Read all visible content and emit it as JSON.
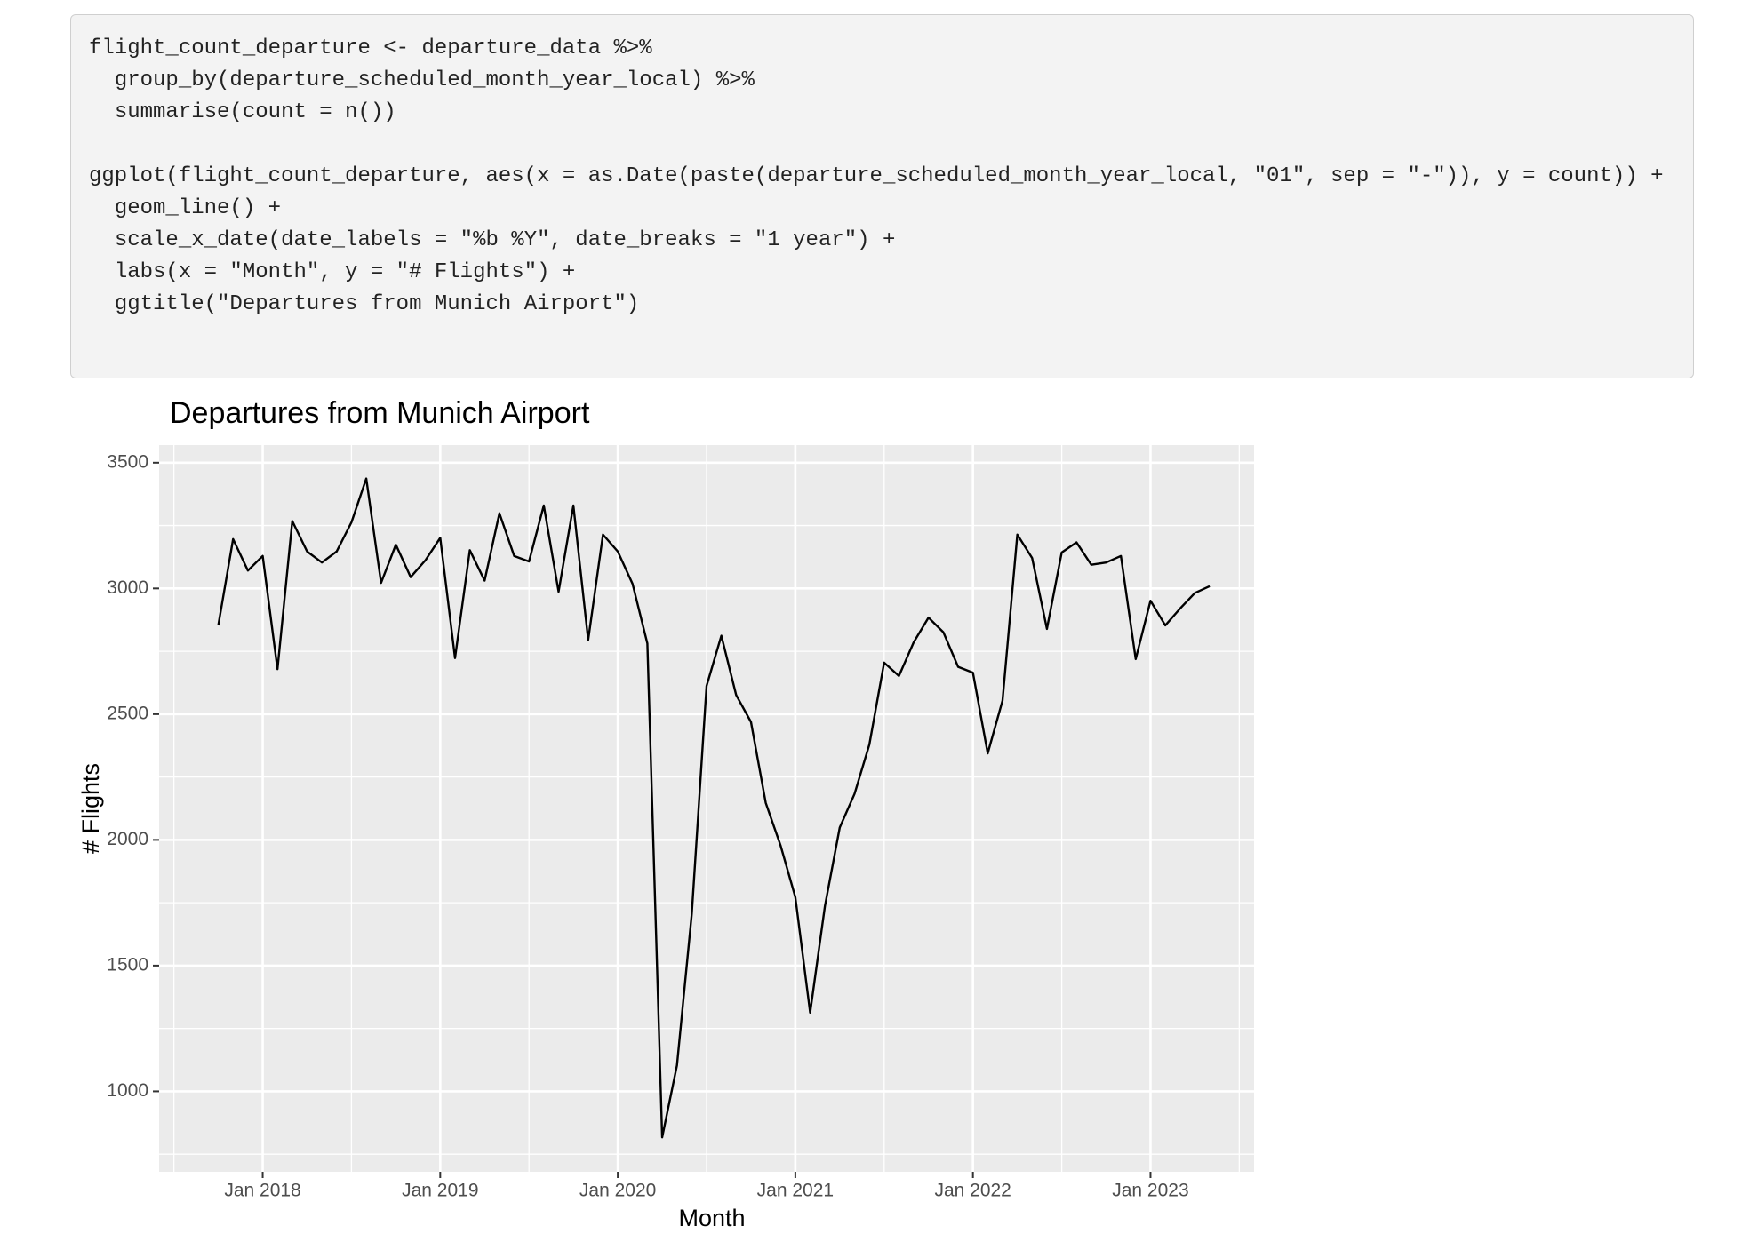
{
  "code": "flight_count_departure <- departure_data %>%\n  group_by(departure_scheduled_month_year_local) %>%\n  summarise(count = n())\n\nggplot(flight_count_departure, aes(x = as.Date(paste(departure_scheduled_month_year_local, \"01\", sep = \"-\")), y = count)) +\n  geom_line() +\n  scale_x_date(date_labels = \"%b %Y\", date_breaks = \"1 year\") +\n  labs(x = \"Month\", y = \"# Flights\") +\n  ggtitle(\"Departures from Munich Airport\")",
  "chart_data": {
    "type": "line",
    "title": "Departures from Munich Airport",
    "x_label": "Month",
    "y_label": "# Flights",
    "color": "#000000",
    "grid": true,
    "x": [
      "2017-10",
      "2017-11",
      "2017-12",
      "2018-01",
      "2018-02",
      "2018-03",
      "2018-04",
      "2018-05",
      "2018-06",
      "2018-07",
      "2018-08",
      "2018-09",
      "2018-10",
      "2018-11",
      "2018-12",
      "2019-01",
      "2019-02",
      "2019-03",
      "2019-04",
      "2019-05",
      "2019-06",
      "2019-07",
      "2019-08",
      "2019-09",
      "2019-10",
      "2019-11",
      "2019-12",
      "2020-01",
      "2020-02",
      "2020-03",
      "2020-04",
      "2020-05",
      "2020-06",
      "2020-07",
      "2020-08",
      "2020-09",
      "2020-10",
      "2020-11",
      "2020-12",
      "2021-01",
      "2021-02",
      "2021-03",
      "2021-04",
      "2021-05",
      "2021-06",
      "2021-07",
      "2021-08",
      "2021-09",
      "2021-10",
      "2021-11",
      "2021-12",
      "2022-01",
      "2022-02",
      "2022-03",
      "2022-04",
      "2022-05",
      "2022-06",
      "2022-07",
      "2022-08",
      "2022-09",
      "2022-10",
      "2022-11",
      "2022-12",
      "2023-01",
      "2023-02",
      "2023-03",
      "2023-04",
      "2023-05"
    ],
    "values": [
      2853,
      3196,
      3071,
      3129,
      2679,
      3268,
      3147,
      3103,
      3147,
      3263,
      3437,
      3022,
      3174,
      3045,
      3112,
      3201,
      2723,
      3152,
      3031,
      3299,
      3129,
      3107,
      3330,
      2987,
      3330,
      2795,
      3214,
      3147,
      3018,
      2781,
      817,
      1103,
      1705,
      2612,
      2812,
      2576,
      2469,
      2147,
      1978,
      1772,
      1313,
      1737,
      2049,
      2183,
      2379,
      2705,
      2652,
      2786,
      2884,
      2826,
      2688,
      2665,
      2344,
      2554,
      3214,
      3121,
      2839,
      3143,
      3183,
      3094,
      3103,
      3129,
      2719,
      2951,
      2853,
      2920,
      2982,
      3009
    ],
    "xlim": [
      "2017-06",
      "2023-08"
    ],
    "xticks": [
      {
        "value": "2018-01",
        "label": "Jan 2018"
      },
      {
        "value": "2019-01",
        "label": "Jan 2019"
      },
      {
        "value": "2020-01",
        "label": "Jan 2020"
      },
      {
        "value": "2021-01",
        "label": "Jan 2021"
      },
      {
        "value": "2022-01",
        "label": "Jan 2022"
      },
      {
        "value": "2023-01",
        "label": "Jan 2023"
      }
    ],
    "ylim": [
      680,
      3570
    ],
    "yticks": [
      1000,
      1500,
      2000,
      2500,
      3000,
      3500
    ]
  }
}
